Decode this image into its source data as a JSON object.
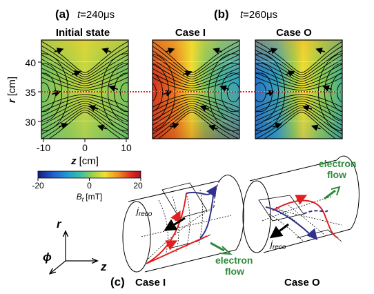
{
  "panel_labels": {
    "a": "(a)",
    "b": "(b)",
    "c": "(c)"
  },
  "times": {
    "a_var": "t",
    "a_value": "=240",
    "a_unit": "μs",
    "b_var": "t",
    "b_value": "=260",
    "b_unit": "μs"
  },
  "plots": [
    {
      "title": "Initial state"
    },
    {
      "title": "Case I"
    },
    {
      "title": "Case O"
    }
  ],
  "axes": {
    "y_var": "r",
    "y_unit": "[cm]",
    "y_ticks": [
      "40",
      "35",
      "30"
    ],
    "x_var": "z",
    "x_unit": "[cm]",
    "x_ticks": [
      "-10",
      "0",
      "10"
    ]
  },
  "colorbar": {
    "ticks": [
      "-20",
      "0",
      "20"
    ],
    "label_var": "B",
    "label_sub": "t",
    "label_unit": "[mT]",
    "colors": [
      "#1a1a80",
      "#2060d0",
      "#20a0d0",
      "#40c0a0",
      "#90d050",
      "#f0e030",
      "#f09020",
      "#e03020",
      "#b01020"
    ]
  },
  "schematic": {
    "coord_labels": {
      "r": "r",
      "phi": "ϕ",
      "z": "z"
    },
    "left": {
      "case_label": "Case I",
      "j_var": "j",
      "j_sub": "reco",
      "flow_line1": "electron",
      "flow_line2": "flow"
    },
    "right": {
      "case_label": "Case O",
      "j_var": "j",
      "j_sub": "reco",
      "flow_line1": "electron",
      "flow_line2": "flow"
    }
  },
  "colors": {
    "reference_line": "#e02020",
    "electron_flow": "#2e8b3a",
    "red_field": "#e02020",
    "blue_field": "#303090"
  }
}
